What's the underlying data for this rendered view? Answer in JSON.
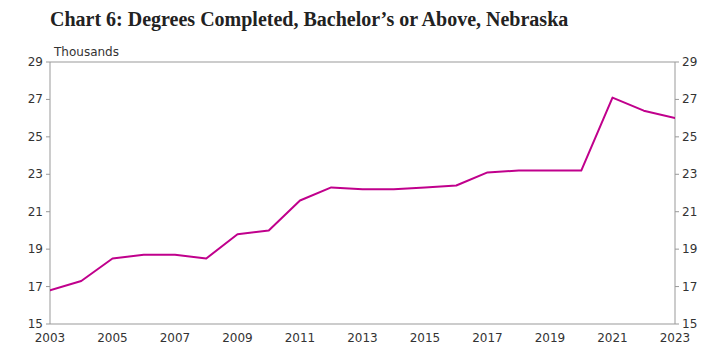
{
  "chart_data": {
    "type": "line",
    "title": "Chart 6: Degrees Completed, Bachelor’s or Above, Nebraska",
    "ylabel": "Thousands",
    "x": [
      2003,
      2004,
      2005,
      2006,
      2007,
      2008,
      2009,
      2010,
      2011,
      2012,
      2013,
      2014,
      2015,
      2016,
      2017,
      2018,
      2019,
      2020,
      2021,
      2022,
      2023
    ],
    "values": [
      16.8,
      17.3,
      18.5,
      18.7,
      18.7,
      18.5,
      19.8,
      20.0,
      21.6,
      22.3,
      22.2,
      22.2,
      22.3,
      22.4,
      23.1,
      23.2,
      23.2,
      23.2,
      27.1,
      26.4,
      26.0
    ],
    "color": "#c0008c",
    "xlim": [
      2003,
      2023
    ],
    "xticks": [
      2003,
      2005,
      2007,
      2009,
      2011,
      2013,
      2015,
      2017,
      2019,
      2021,
      2023
    ],
    "ylim": [
      15,
      29
    ],
    "yticks": [
      15,
      17,
      19,
      21,
      23,
      25,
      27,
      29
    ],
    "y2lim": [
      15,
      29
    ],
    "y2ticks": [
      15,
      17,
      19,
      21,
      23,
      25,
      27,
      29
    ],
    "grid": false
  }
}
